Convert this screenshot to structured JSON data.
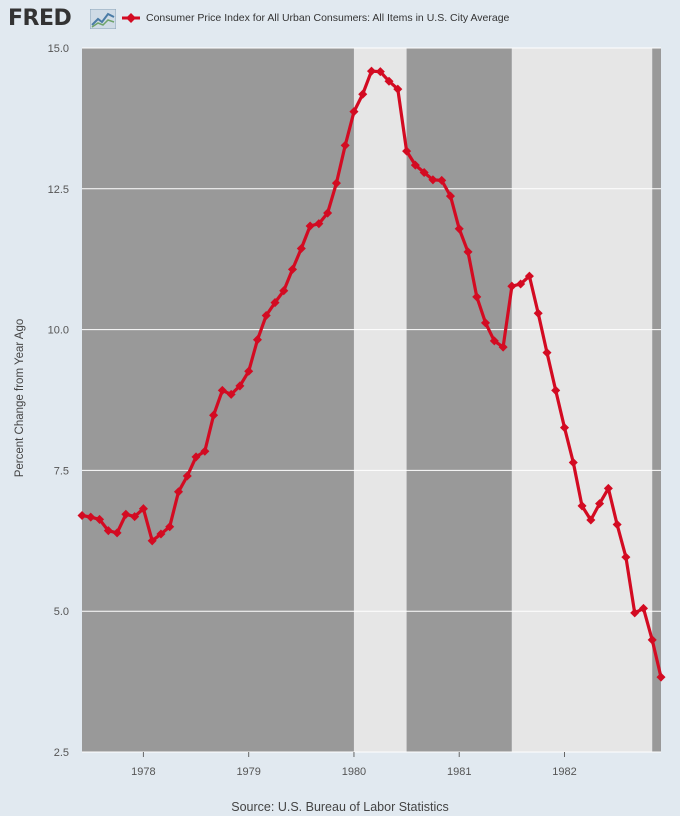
{
  "header": {
    "logo_text": "FRED",
    "logo_icon": "line-chart-icon",
    "series_color": "#d30b22"
  },
  "chart_data": {
    "type": "line",
    "title": "",
    "series": [
      {
        "name": "Consumer Price Index for All Urban Consumers: All Items in U.S. City Average",
        "color": "#d30b22",
        "x": [
          "1977-06",
          "1977-07",
          "1977-08",
          "1977-09",
          "1977-10",
          "1977-11",
          "1977-12",
          "1978-01",
          "1978-02",
          "1978-03",
          "1978-04",
          "1978-05",
          "1978-06",
          "1978-07",
          "1978-08",
          "1978-09",
          "1978-10",
          "1978-11",
          "1978-12",
          "1979-01",
          "1979-02",
          "1979-03",
          "1979-04",
          "1979-05",
          "1979-06",
          "1979-07",
          "1979-08",
          "1979-09",
          "1979-10",
          "1979-11",
          "1979-12",
          "1980-01",
          "1980-02",
          "1980-03",
          "1980-04",
          "1980-05",
          "1980-06",
          "1980-07",
          "1980-08",
          "1980-09",
          "1980-10",
          "1980-11",
          "1980-12",
          "1981-01",
          "1981-02",
          "1981-03",
          "1981-04",
          "1981-05",
          "1981-06",
          "1981-07",
          "1981-08",
          "1981-09",
          "1981-10",
          "1981-11",
          "1981-12",
          "1982-01",
          "1982-02",
          "1982-03",
          "1982-04",
          "1982-05",
          "1982-06",
          "1982-07",
          "1982-08",
          "1982-09",
          "1982-10",
          "1982-11",
          "1982-12"
        ],
        "values": [
          6.7,
          6.67,
          6.63,
          6.43,
          6.39,
          6.72,
          6.68,
          6.82,
          6.25,
          6.37,
          6.5,
          7.12,
          7.4,
          7.74,
          7.84,
          8.48,
          8.92,
          8.85,
          9.0,
          9.26,
          9.82,
          10.25,
          10.48,
          10.69,
          11.07,
          11.44,
          11.84,
          11.88,
          12.07,
          12.6,
          13.27,
          13.87,
          14.18,
          14.59,
          14.58,
          14.41,
          14.27,
          13.17,
          12.92,
          12.79,
          12.66,
          12.65,
          12.37,
          11.79,
          11.38,
          10.58,
          10.12,
          9.8,
          9.69,
          10.77,
          10.81,
          10.95,
          10.29,
          9.59,
          8.92,
          8.26,
          7.64,
          6.87,
          6.62,
          6.91,
          7.18,
          6.54,
          5.96,
          4.97,
          5.05,
          4.49,
          3.83
        ]
      }
    ],
    "ylabel": "Percent Change from Year Ago",
    "ylim": [
      2.5,
      15.0
    ],
    "xlim": [
      "1977-06",
      "1982-12"
    ],
    "yticks": [
      "2.5",
      "5.0",
      "7.5",
      "10.0",
      "12.5",
      "15.0"
    ],
    "xticks": [
      "1978",
      "1979",
      "1980",
      "1981",
      "1982"
    ],
    "grid": true,
    "legend_position": "top-left",
    "background_bands": [
      {
        "start": "1977-06",
        "end": "1980-01",
        "color": "#999999"
      },
      {
        "start": "1980-01",
        "end": "1980-07",
        "color": "#e6e6e6"
      },
      {
        "start": "1980-07",
        "end": "1981-07",
        "color": "#999999"
      },
      {
        "start": "1981-07",
        "end": "1982-11",
        "color": "#e6e6e6"
      },
      {
        "start": "1982-11",
        "end": "1982-12",
        "color": "#999999"
      }
    ]
  },
  "footer": {
    "source": "Source: U.S. Bureau of Labor Statistics"
  }
}
